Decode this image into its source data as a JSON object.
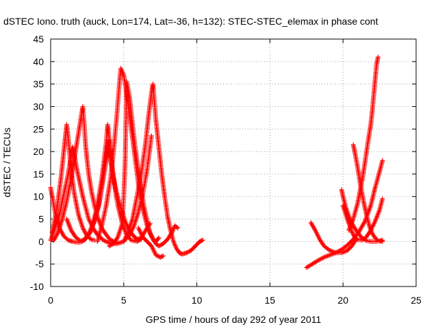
{
  "chart_data": {
    "type": "scatter",
    "title": "dSTEC Iono. truth (auck, Lon=174, Lat=-36, h=132): STEC-STEC_elemax in phase cont",
    "xlabel": "GPS time / hours of day 292 of year 2011",
    "ylabel": "dSTEC  / TECUs",
    "xlim": [
      0,
      25
    ],
    "ylim": [
      -10,
      45
    ],
    "xticks": [
      0,
      5,
      10,
      15,
      20,
      25
    ],
    "yticks": [
      -10,
      -5,
      0,
      5,
      10,
      15,
      20,
      25,
      30,
      35,
      40,
      45
    ],
    "grid": true,
    "legend": "none",
    "marker": "plus",
    "color": "#ff0000",
    "series": [
      {
        "x": [
          0.0,
          0.3,
          0.6,
          0.9,
          1.2,
          1.5,
          1.8,
          2.1,
          2.4,
          2.7,
          3.0,
          3.3,
          3.6,
          3.9,
          4.0
        ],
        "y": [
          12.0,
          6.5,
          3.0,
          1.2,
          0.3,
          0.0,
          -0.2,
          -0.1,
          0.6,
          2.0,
          4.5,
          8.5,
          14.0,
          20.0,
          22.5
        ]
      },
      {
        "x": [
          0.0,
          0.3,
          0.6,
          0.9,
          1.2,
          1.4,
          1.5,
          1.6,
          1.8,
          2.0,
          2.2,
          2.4,
          2.6,
          2.9,
          3.2,
          3.6,
          4.0,
          4.5,
          5.0,
          5.4,
          5.7,
          6.0,
          6.3,
          6.6,
          6.9
        ],
        "y": [
          0.3,
          3.0,
          6.0,
          10.5,
          15.0,
          19.0,
          21.0,
          19.5,
          16.0,
          13.0,
          10.0,
          7.5,
          5.0,
          3.0,
          1.5,
          0.3,
          -0.3,
          -0.5,
          0.0,
          1.5,
          3.5,
          6.5,
          10.5,
          16.0,
          23.5
        ]
      },
      {
        "x": [
          0.1,
          0.3,
          0.5,
          0.7,
          0.9,
          1.0,
          1.1,
          1.2,
          1.4,
          1.6,
          1.9,
          2.2,
          2.5,
          2.8,
          3.0
        ],
        "y": [
          2.0,
          5.0,
          9.0,
          14.0,
          20.0,
          23.0,
          26.0,
          23.0,
          16.0,
          11.0,
          6.0,
          3.0,
          1.2,
          0.4,
          0.3
        ]
      },
      {
        "x": [
          0.2,
          0.5,
          0.8,
          1.1,
          1.4,
          1.7,
          1.9,
          2.1,
          2.2,
          2.3,
          2.4,
          2.6,
          2.8,
          3.0,
          3.2,
          3.5,
          3.8,
          4.1,
          4.3,
          4.5
        ],
        "y": [
          0.2,
          2.0,
          5.0,
          9.0,
          14.0,
          20.0,
          24.0,
          28.0,
          30.0,
          26.0,
          21.0,
          15.0,
          11.0,
          8.0,
          5.5,
          3.0,
          1.5,
          0.3,
          0.0,
          -0.3
        ]
      },
      {
        "x": [
          1.1,
          1.4,
          1.7,
          2.0,
          2.3,
          2.6,
          2.9,
          3.2,
          3.5,
          3.8,
          3.9,
          4.0,
          4.2,
          4.4,
          4.6,
          4.9,
          5.2,
          5.5,
          5.9,
          6.2
        ],
        "y": [
          5.0,
          2.5,
          1.0,
          0.2,
          0.3,
          1.5,
          4.0,
          8.0,
          14.0,
          22.0,
          26.0,
          23.0,
          17.0,
          12.0,
          8.0,
          4.0,
          1.5,
          0.3,
          0.0,
          0.5
        ]
      },
      {
        "x": [
          2.3,
          2.7,
          3.0,
          3.3,
          3.5,
          3.7,
          3.9,
          4.1,
          4.3,
          4.5,
          4.7,
          4.9,
          5.1,
          5.3,
          5.6,
          5.9,
          6.2,
          6.5,
          6.8
        ],
        "y": [
          0.5,
          2.0,
          4.5,
          8.0,
          12.0,
          17.5,
          22.0,
          18.0,
          14.0,
          11.0,
          8.5,
          6.5,
          4.5,
          3.0,
          1.5,
          0.5,
          0.8,
          2.5,
          4.0
        ]
      },
      {
        "x": [
          3.2,
          3.5,
          3.8,
          4.1,
          4.3,
          4.5,
          4.7,
          4.8,
          5.0,
          5.2,
          5.4,
          5.6,
          5.8,
          6.0,
          6.2,
          6.4,
          6.6,
          6.8,
          7.0,
          7.2,
          7.4
        ],
        "y": [
          0.0,
          3.5,
          8.0,
          14.0,
          20.0,
          27.0,
          35.0,
          38.5,
          37.0,
          33.0,
          28.0,
          23.0,
          18.0,
          13.0,
          9.0,
          6.0,
          3.5,
          1.8,
          0.5,
          0.0,
          0.8
        ]
      },
      {
        "x": [
          4.0,
          4.3,
          4.6,
          4.9,
          5.0,
          5.1,
          5.2,
          5.4,
          5.6,
          5.8,
          6.0,
          6.2,
          6.4,
          6.6,
          6.8,
          7.0,
          7.2,
          7.4,
          7.7,
          8.0,
          8.3,
          8.5,
          8.7
        ],
        "y": [
          -1.0,
          -0.5,
          1.0,
          4.0,
          10.0,
          18.0,
          35.5,
          32.0,
          26.0,
          20.5,
          15.5,
          11.0,
          7.5,
          4.5,
          2.0,
          0.5,
          -0.5,
          -1.0,
          -0.5,
          0.5,
          2.0,
          3.5,
          3.0
        ]
      },
      {
        "x": [
          5.0,
          5.3,
          5.6,
          5.9,
          6.2,
          6.5,
          6.7,
          6.9,
          7.0,
          7.1,
          7.2,
          7.4,
          7.6,
          7.8,
          8.0,
          8.2,
          8.4,
          8.6,
          8.8,
          9.0,
          9.3,
          9.6,
          9.9,
          10.2,
          10.4
        ],
        "y": [
          0.0,
          2.0,
          5.0,
          10.0,
          15.0,
          22.0,
          28.0,
          33.0,
          35.0,
          31.0,
          27.0,
          21.0,
          15.0,
          10.0,
          5.5,
          2.5,
          0.0,
          -1.5,
          -2.5,
          -2.8,
          -2.5,
          -2.0,
          -1.0,
          0.0,
          0.3
        ]
      },
      {
        "x": [
          6.0,
          6.3,
          6.6,
          6.9,
          7.2,
          7.5,
          7.7
        ],
        "y": [
          3.0,
          1.0,
          0.0,
          -1.0,
          -3.0,
          -3.5,
          -3.2
        ]
      },
      {
        "x": [
          17.5,
          17.9,
          18.3,
          18.7,
          19.1,
          19.5,
          19.9,
          20.3,
          20.7,
          21.1,
          21.5,
          21.9,
          22.2,
          22.5,
          22.7
        ],
        "y": [
          -5.8,
          -5.0,
          -4.2,
          -3.5,
          -3.0,
          -2.5,
          -1.8,
          -0.8,
          0.5,
          2.2,
          4.5,
          8.0,
          12.0,
          15.5,
          18.0
        ]
      },
      {
        "x": [
          17.8,
          18.1,
          18.4,
          18.7,
          19.1,
          19.5,
          19.9,
          20.3,
          20.6,
          20.9
        ],
        "y": [
          4.2,
          2.5,
          0.5,
          -1.0,
          -2.0,
          -2.5,
          -2.5,
          -2.0,
          -1.0,
          0.5
        ]
      },
      {
        "x": [
          19.9,
          20.0,
          20.2,
          20.4,
          20.7,
          21.0,
          21.3,
          21.6,
          21.9,
          22.2,
          22.5,
          22.7
        ],
        "y": [
          11.5,
          10.0,
          7.5,
          5.5,
          3.5,
          2.0,
          0.8,
          0.2,
          0.0,
          0.0,
          0.1,
          0.3
        ]
      },
      {
        "x": [
          20.0,
          20.2,
          20.4,
          20.6,
          20.8,
          21.0,
          21.3,
          21.6,
          21.9,
          22.2,
          22.5,
          22.7
        ],
        "y": [
          8.0,
          6.0,
          4.0,
          2.2,
          1.0,
          0.4,
          0.3,
          1.0,
          2.5,
          4.5,
          7.0,
          9.5
        ]
      },
      {
        "x": [
          20.7,
          20.8,
          21.0,
          21.2,
          21.4,
          21.6,
          21.8,
          22.0,
          22.2,
          22.4,
          22.7
        ],
        "y": [
          21.5,
          20.0,
          16.5,
          12.5,
          9.0,
          6.0,
          3.5,
          1.8,
          0.8,
          0.2,
          0.0
        ]
      },
      {
        "x": [
          20.4,
          20.7,
          21.0,
          21.3,
          21.5,
          21.7,
          21.9,
          22.0,
          22.1,
          22.2,
          22.3,
          22.4
        ],
        "y": [
          2.5,
          5.0,
          8.5,
          13.5,
          17.5,
          22.0,
          26.0,
          29.0,
          32.5,
          36.0,
          39.5,
          41.0
        ]
      }
    ]
  }
}
